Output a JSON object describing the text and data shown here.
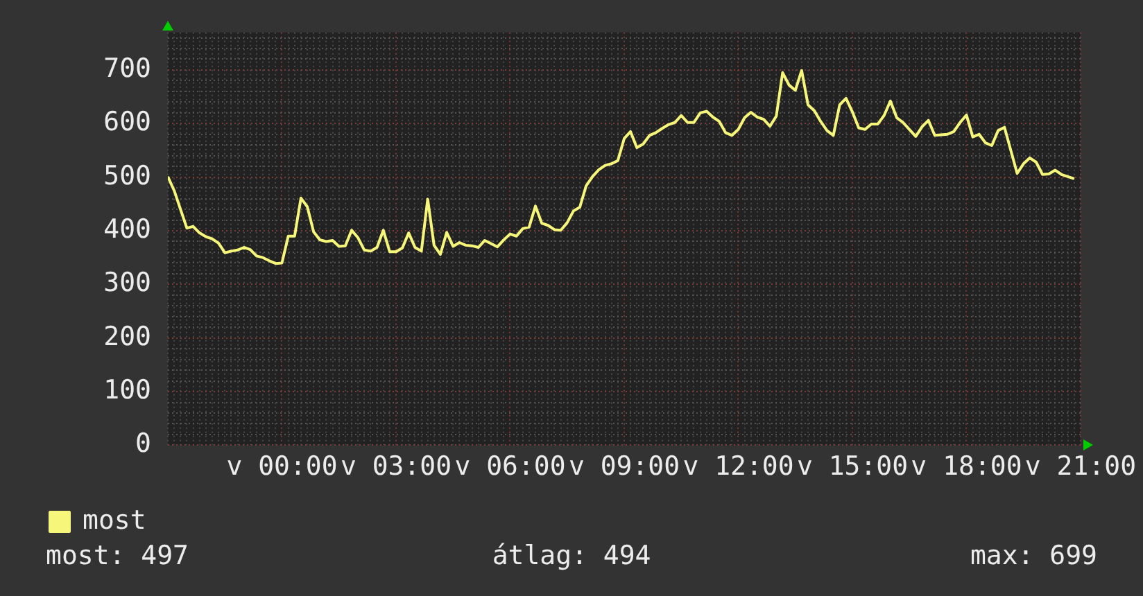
{
  "chart_data": {
    "type": "line",
    "categories": [
      null,
      null,
      null,
      null,
      null,
      null,
      null,
      null,
      null,
      null,
      null,
      null,
      null,
      null,
      null,
      null,
      null,
      null,
      "v 00:00",
      null,
      null,
      null,
      null,
      null,
      null,
      null,
      null,
      null,
      null,
      null,
      null,
      null,
      null,
      null,
      null,
      null,
      "v 03:00",
      null,
      null,
      null,
      null,
      null,
      null,
      null,
      null,
      null,
      null,
      null,
      null,
      null,
      null,
      null,
      null,
      null,
      "v 06:00",
      null,
      null,
      null,
      null,
      null,
      null,
      null,
      null,
      null,
      null,
      null,
      null,
      null,
      null,
      null,
      null,
      null,
      "v 09:00",
      null,
      null,
      null,
      null,
      null,
      null,
      null,
      null,
      null,
      null,
      null,
      null,
      null,
      null,
      null,
      null,
      null,
      "v 12:00",
      null,
      null,
      null,
      null,
      null,
      null,
      null,
      null,
      null,
      null,
      null,
      null,
      null,
      null,
      null,
      null,
      null,
      "v 15:00",
      null,
      null,
      null,
      null,
      null,
      null,
      null,
      null,
      null,
      null,
      null,
      null,
      null,
      null,
      null,
      null,
      null,
      "v 18:00",
      null,
      null,
      null,
      null,
      null,
      null,
      null,
      null,
      null,
      null,
      null,
      null,
      null,
      null,
      null,
      null,
      null,
      "v 21:00"
    ],
    "series": [
      {
        "name": "most",
        "color": "#f6f67a",
        "values": [
          501,
          475,
          440,
          405,
          408,
          396,
          389,
          385,
          377,
          359,
          362,
          364,
          369,
          365,
          353,
          350,
          344,
          339,
          340,
          390,
          390,
          461,
          445,
          398,
          383,
          380,
          382,
          371,
          372,
          401,
          387,
          364,
          362,
          369,
          401,
          361,
          361,
          368,
          396,
          369,
          362,
          459,
          373,
          356,
          397,
          371,
          378,
          373,
          372,
          369,
          382,
          376,
          370,
          383,
          394,
          390,
          404,
          407,
          446,
          414,
          410,
          402,
          401,
          415,
          437,
          444,
          484,
          501,
          514,
          522,
          525,
          531,
          572,
          585,
          555,
          562,
          578,
          583,
          591,
          598,
          602,
          615,
          602,
          602,
          620,
          623,
          612,
          604,
          583,
          578,
          589,
          611,
          621,
          612,
          608,
          595,
          614,
          695,
          672,
          662,
          699,
          635,
          624,
          604,
          587,
          578,
          635,
          647,
          622,
          592,
          589,
          599,
          599,
          615,
          642,
          611,
          602,
          589,
          576,
          594,
          606,
          578,
          579,
          580,
          585,
          602,
          616,
          575,
          580,
          564,
          559,
          587,
          593,
          550,
          507,
          525,
          536,
          528,
          505,
          506,
          513,
          505,
          501,
          497,
          null
        ]
      }
    ],
    "ylim": [
      0,
      770
    ],
    "yticks": [
      0,
      {
        "value": 20,
        "label": null
      },
      {
        "value": 40,
        "label": null
      },
      {
        "value": 60,
        "label": null
      },
      {
        "value": 80,
        "label": null
      },
      100,
      {
        "value": 120,
        "label": null
      },
      {
        "value": 140,
        "label": null
      },
      {
        "value": 160,
        "label": null
      },
      {
        "value": 180,
        "label": null
      },
      200,
      {
        "value": 220,
        "label": null
      },
      {
        "value": 240,
        "label": null
      },
      {
        "value": 260,
        "label": null
      },
      {
        "value": 280,
        "label": null
      },
      300,
      {
        "value": 320,
        "label": null
      },
      {
        "value": 340,
        "label": null
      },
      {
        "value": 360,
        "label": null
      },
      {
        "value": 380,
        "label": null
      },
      400,
      {
        "value": 420,
        "label": null
      },
      {
        "value": 440,
        "label": null
      },
      {
        "value": 460,
        "label": null
      },
      {
        "value": 480,
        "label": null
      },
      500,
      {
        "value": 520,
        "label": null
      },
      {
        "value": 540,
        "label": null
      },
      {
        "value": 560,
        "label": null
      },
      {
        "value": 580,
        "label": null
      },
      600,
      {
        "value": 620,
        "label": null
      },
      {
        "value": 640,
        "label": null
      },
      {
        "value": 660,
        "label": null
      },
      {
        "value": 680,
        "label": null
      },
      700,
      {
        "value": 720,
        "label": null
      },
      {
        "value": 740,
        "label": null
      },
      {
        "value": 760,
        "label": null
      }
    ],
    "grid": true,
    "legend": "bottom left",
    "marker": "none",
    "annotations": [
      "most: 497",
      "átlag: 494",
      "max: 699"
    ]
  }
}
